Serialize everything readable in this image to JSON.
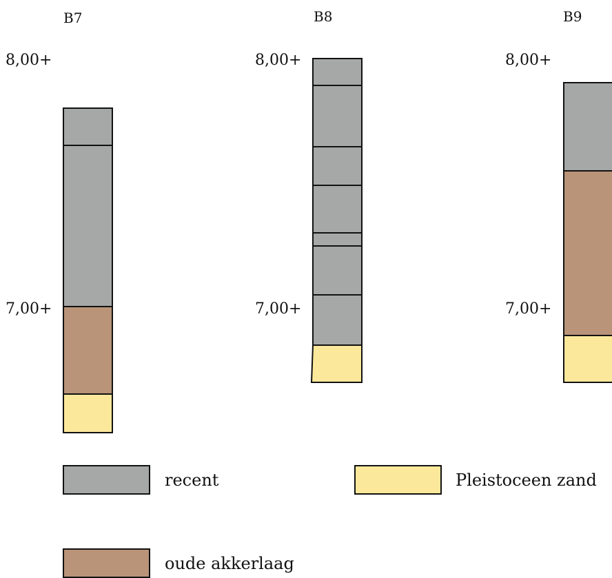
{
  "columns": [
    {
      "title": "B7",
      "tick_upper": "8,00+",
      "tick_lower": "7,00+",
      "layers": [
        "recent",
        "recent",
        "oude akkerlaag",
        "Pleistoceen zand"
      ]
    },
    {
      "title": "B8",
      "tick_upper": "8,00+",
      "tick_lower": "7,00+",
      "layers": [
        "recent",
        "recent",
        "recent",
        "recent",
        "recent",
        "recent",
        "recent",
        "Pleistoceen zand"
      ]
    },
    {
      "title": "B9",
      "tick_upper": "8,00+",
      "tick_lower": "7,00+",
      "layers": [
        "recent",
        "oude akkerlaag",
        "Pleistoceen zand"
      ]
    }
  ],
  "legend": {
    "recent": "recent",
    "pleistoceen": "Pleistoceen zand",
    "akker": "oude akkerlaag"
  },
  "colors": {
    "recent": "#a6a8a8",
    "oude akkerlaag": "#b99479",
    "Pleistoceen zand": "#fbe89b",
    "outline": "#111111"
  }
}
